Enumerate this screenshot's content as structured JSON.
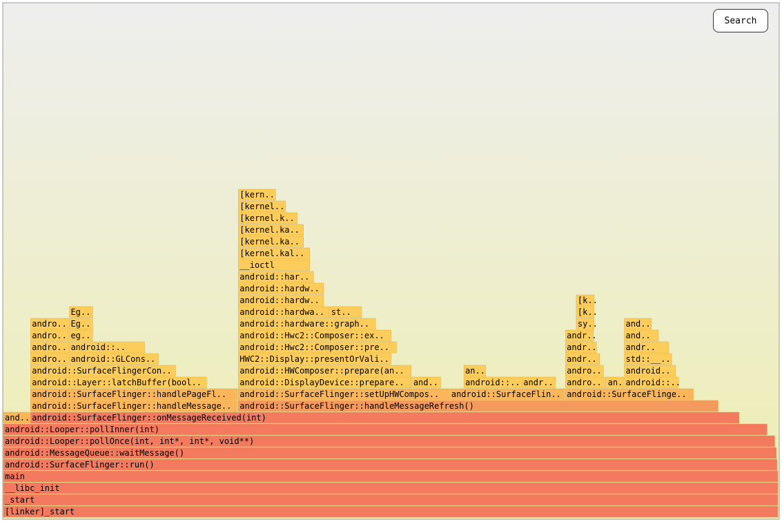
{
  "search_button": "Search",
  "chart_data": {
    "type": "flame",
    "xlim": [
      0,
      100
    ],
    "frames": [
      {
        "name": "[linker]_start",
        "depth": 0,
        "x": 0,
        "value": 100
      },
      {
        "name": "_start",
        "depth": 1,
        "x": 0,
        "value": 100
      },
      {
        "name": "__libc_init",
        "depth": 2,
        "x": 0,
        "value": 100
      },
      {
        "name": "main",
        "depth": 3,
        "x": 0,
        "value": 100
      },
      {
        "name": "android::SurfaceFlinger::run()",
        "depth": 4,
        "x": 0,
        "value": 99.9
      },
      {
        "name": "android::MessageQueue::waitMessage()",
        "depth": 5,
        "x": 0,
        "value": 99.8
      },
      {
        "name": "android::Looper::pollOnce(int, int*, int*, void**)",
        "depth": 6,
        "x": 0,
        "value": 99.6
      },
      {
        "name": "android::Looper::pollInner(int)",
        "depth": 7,
        "x": 0,
        "value": 98.6
      },
      {
        "name": "and..",
        "depth": 8,
        "x": 0,
        "value": 3.5
      },
      {
        "name": "android::SurfaceFlinger::onMessageReceived(int)",
        "depth": 8,
        "x": 3.5,
        "value": 91.5
      },
      {
        "name": "android::SurfaceFlinger::handleMessage..",
        "depth": 9,
        "x": 3.5,
        "value": 26.8
      },
      {
        "name": "android::SurfaceFlinger::handleMessageRefresh()",
        "depth": 9,
        "x": 30.3,
        "value": 62.0
      },
      {
        "name": "android::SurfaceFlinger::handlePageFl..",
        "depth": 10,
        "x": 3.5,
        "value": 26.8
      },
      {
        "name": "android::SurfaceFlinger::setUpHWCompos..",
        "depth": 10,
        "x": 30.3,
        "value": 27.3
      },
      {
        "name": "android::SurfaceFlin..",
        "depth": 10,
        "x": 57.6,
        "value": 14.9
      },
      {
        "name": "android::SurfaceFlinge..",
        "depth": 10,
        "x": 72.5,
        "value": 16.6
      },
      {
        "name": "android::Layer::latchBuffer(bool..",
        "depth": 11,
        "x": 3.5,
        "value": 22.8
      },
      {
        "name": "android::DisplayDevice::prepare..",
        "depth": 11,
        "x": 30.3,
        "value": 22.4
      },
      {
        "name": "and..",
        "depth": 11,
        "x": 52.7,
        "value": 3.8
      },
      {
        "name": "android::..",
        "depth": 11,
        "x": 59.4,
        "value": 7.5
      },
      {
        "name": "andr..",
        "depth": 11,
        "x": 66.9,
        "value": 4.4
      },
      {
        "name": "andro..",
        "depth": 11,
        "x": 72.5,
        "value": 5.3
      },
      {
        "name": "an..",
        "depth": 11,
        "x": 77.8,
        "value": 2.3
      },
      {
        "name": "android::..",
        "depth": 11,
        "x": 80.1,
        "value": 7.1
      },
      {
        "name": "android::SurfaceFlingerCon..",
        "depth": 12,
        "x": 3.5,
        "value": 18.8
      },
      {
        "name": "android::HWComposer::prepare(an..",
        "depth": 12,
        "x": 30.3,
        "value": 22.4
      },
      {
        "name": "an..",
        "depth": 12,
        "x": 59.4,
        "value": 2.9
      },
      {
        "name": "andro..",
        "depth": 12,
        "x": 72.5,
        "value": 5.0
      },
      {
        "name": "android..",
        "depth": 12,
        "x": 80.1,
        "value": 6.7
      },
      {
        "name": "andro..",
        "depth": 13,
        "x": 3.5,
        "value": 5.0
      },
      {
        "name": "android::GLCons..",
        "depth": 13,
        "x": 8.5,
        "value": 11.6
      },
      {
        "name": "HWC2::Display::presentOrVali..",
        "depth": 13,
        "x": 30.3,
        "value": 19.8
      },
      {
        "name": "andr..",
        "depth": 13,
        "x": 72.5,
        "value": 4.5
      },
      {
        "name": "std::__..",
        "depth": 13,
        "x": 80.1,
        "value": 6.2
      },
      {
        "name": "andro..",
        "depth": 14,
        "x": 3.5,
        "value": 5.0
      },
      {
        "name": "android::..",
        "depth": 14,
        "x": 8.5,
        "value": 9.8
      },
      {
        "name": "android::Hwc2::Composer::pre..",
        "depth": 14,
        "x": 30.3,
        "value": 20.5
      },
      {
        "name": "andr..",
        "depth": 14,
        "x": 72.5,
        "value": 4.1
      },
      {
        "name": "andr..",
        "depth": 14,
        "x": 80.1,
        "value": 5.8
      },
      {
        "name": "andro..",
        "depth": 15,
        "x": 3.5,
        "value": 5.0
      },
      {
        "name": "eg..",
        "depth": 15,
        "x": 8.5,
        "value": 3.1
      },
      {
        "name": "android::Hwc2::Composer::ex..",
        "depth": 15,
        "x": 30.3,
        "value": 19.8
      },
      {
        "name": "andr..",
        "depth": 15,
        "x": 72.5,
        "value": 3.7
      },
      {
        "name": "and..",
        "depth": 15,
        "x": 80.1,
        "value": 4.5
      },
      {
        "name": "andro..",
        "depth": 16,
        "x": 3.5,
        "value": 5.0
      },
      {
        "name": "Eg..",
        "depth": 16,
        "x": 8.5,
        "value": 3.1
      },
      {
        "name": "android::hardware::graph..",
        "depth": 16,
        "x": 30.3,
        "value": 17.8
      },
      {
        "name": "sy..",
        "depth": 16,
        "x": 73.9,
        "value": 2.4
      },
      {
        "name": "and..",
        "depth": 16,
        "x": 80.1,
        "value": 3.6
      },
      {
        "name": "Eg..",
        "depth": 17,
        "x": 8.5,
        "value": 3.1
      },
      {
        "name": "android::hardwa..",
        "depth": 17,
        "x": 30.3,
        "value": 11.8
      },
      {
        "name": "st..",
        "depth": 17,
        "x": 42.1,
        "value": 4.2
      },
      {
        "name": "[k..",
        "depth": 17,
        "x": 73.9,
        "value": 2.4
      },
      {
        "name": "android::hardw..",
        "depth": 18,
        "x": 30.3,
        "value": 11.1
      },
      {
        "name": "[k..",
        "depth": 18,
        "x": 73.9,
        "value": 2.4
      },
      {
        "name": "android::hardw..",
        "depth": 19,
        "x": 30.3,
        "value": 11.1
      },
      {
        "name": "android::har..",
        "depth": 20,
        "x": 30.3,
        "value": 9.8
      },
      {
        "name": "__ioctl",
        "depth": 21,
        "x": 30.3,
        "value": 9.3
      },
      {
        "name": "[kernel.kal..",
        "depth": 22,
        "x": 30.3,
        "value": 9.3
      },
      {
        "name": "[kernel.ka..",
        "depth": 23,
        "x": 30.3,
        "value": 8.5
      },
      {
        "name": "[kernel.ka..",
        "depth": 24,
        "x": 30.3,
        "value": 8.5
      },
      {
        "name": "[kernel.k..",
        "depth": 25,
        "x": 30.3,
        "value": 7.7
      },
      {
        "name": "[kernel..",
        "depth": 26,
        "x": 30.3,
        "value": 6.2
      },
      {
        "name": "[kern..",
        "depth": 27,
        "x": 30.3,
        "value": 4.9
      }
    ]
  }
}
